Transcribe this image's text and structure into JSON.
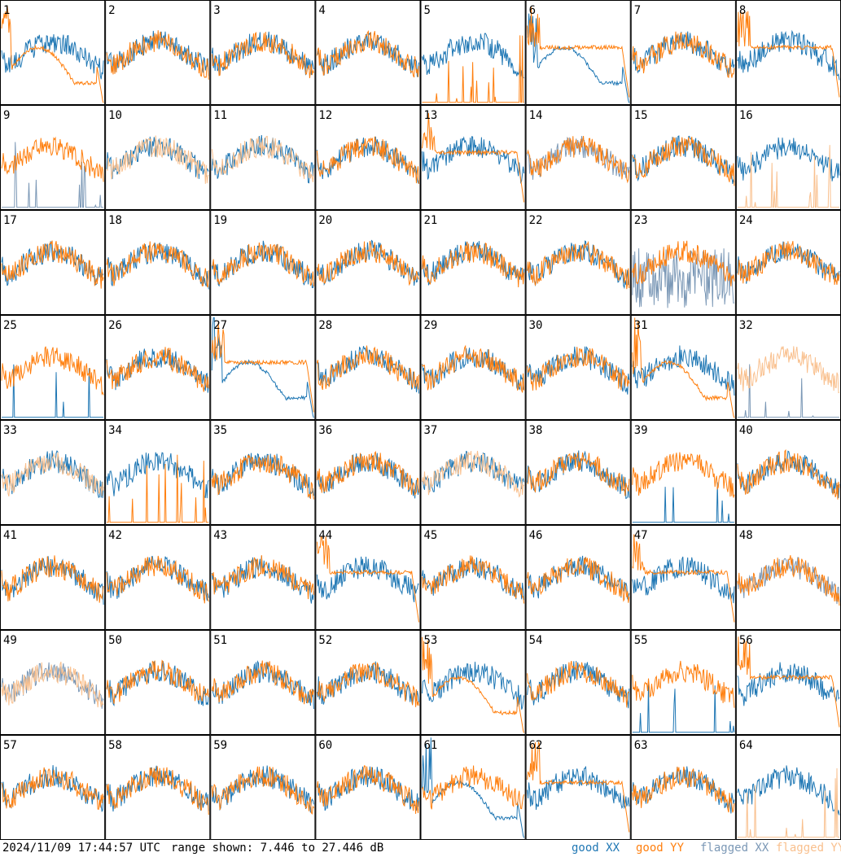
{
  "footer": {
    "timestamp": "2024/11/09 17:44:57 UTC",
    "range_text": "range shown: 7.446 to 27.446 dB",
    "legend": [
      {
        "label": "good XX",
        "color": "#1f77b4"
      },
      {
        "label": "good YY",
        "color": "#ff7f0e"
      },
      {
        "label": "flagged XX",
        "color": "#7b98b6"
      },
      {
        "label": "flagged YY",
        "color": "#f9c08e"
      }
    ]
  },
  "chart_data": {
    "type": "line",
    "title": "",
    "xlabel": "",
    "ylabel": "",
    "ylim": [
      7.446,
      27.446
    ],
    "units": "dB",
    "grid": {
      "rows": 8,
      "cols": 8
    },
    "tiles": [
      {
        "id": "1",
        "xx": "good",
        "yy": "good",
        "xx_shape": "normal",
        "yy_shape": "bump"
      },
      {
        "id": "2",
        "xx": "good",
        "yy": "good",
        "xx_shape": "normal",
        "yy_shape": "normal"
      },
      {
        "id": "3",
        "xx": "good",
        "yy": "good",
        "xx_shape": "normal",
        "yy_shape": "normal"
      },
      {
        "id": "4",
        "xx": "good",
        "yy": "good",
        "xx_shape": "normal",
        "yy_shape": "normal"
      },
      {
        "id": "5",
        "xx": "good",
        "yy": "good",
        "xx_shape": "normal",
        "yy_shape": "spikes"
      },
      {
        "id": "6",
        "xx": "good",
        "yy": "good",
        "xx_shape": "bump",
        "yy_shape": "flat"
      },
      {
        "id": "7",
        "xx": "good",
        "yy": "good",
        "xx_shape": "normal",
        "yy_shape": "normal"
      },
      {
        "id": "8",
        "xx": "good",
        "yy": "good",
        "xx_shape": "normal",
        "yy_shape": "flat"
      },
      {
        "id": "9",
        "xx": "flagged",
        "yy": "good",
        "xx_shape": "spikes",
        "yy_shape": "normal"
      },
      {
        "id": "10",
        "xx": "good",
        "yy": "flagged",
        "xx_shape": "normal",
        "yy_shape": "normal"
      },
      {
        "id": "11",
        "xx": "good",
        "yy": "flagged",
        "xx_shape": "normal",
        "yy_shape": "normal"
      },
      {
        "id": "12",
        "xx": "good",
        "yy": "good",
        "xx_shape": "normal",
        "yy_shape": "normal"
      },
      {
        "id": "13",
        "xx": "good",
        "yy": "good",
        "xx_shape": "normal",
        "yy_shape": "flat"
      },
      {
        "id": "14",
        "xx": "flagged",
        "yy": "good",
        "xx_shape": "normal",
        "yy_shape": "normal"
      },
      {
        "id": "15",
        "xx": "good",
        "yy": "good",
        "xx_shape": "normal",
        "yy_shape": "normal"
      },
      {
        "id": "16",
        "xx": "good",
        "yy": "flagged",
        "xx_shape": "normal",
        "yy_shape": "spikes"
      },
      {
        "id": "17",
        "xx": "good",
        "yy": "good",
        "xx_shape": "normal",
        "yy_shape": "normal"
      },
      {
        "id": "18",
        "xx": "good",
        "yy": "good",
        "xx_shape": "normal",
        "yy_shape": "normal"
      },
      {
        "id": "19",
        "xx": "good",
        "yy": "good",
        "xx_shape": "normal",
        "yy_shape": "normal"
      },
      {
        "id": "20",
        "xx": "good",
        "yy": "good",
        "xx_shape": "normal",
        "yy_shape": "normal"
      },
      {
        "id": "21",
        "xx": "good",
        "yy": "good",
        "xx_shape": "normal",
        "yy_shape": "normal"
      },
      {
        "id": "22",
        "xx": "good",
        "yy": "good",
        "xx_shape": "normal",
        "yy_shape": "normal"
      },
      {
        "id": "23",
        "xx": "flagged",
        "yy": "good",
        "xx_shape": "noisy",
        "yy_shape": "normal"
      },
      {
        "id": "24",
        "xx": "good",
        "yy": "good",
        "xx_shape": "normal",
        "yy_shape": "normal"
      },
      {
        "id": "25",
        "xx": "good",
        "yy": "good",
        "xx_shape": "spikes",
        "yy_shape": "normal"
      },
      {
        "id": "26",
        "xx": "good",
        "yy": "good",
        "xx_shape": "normal",
        "yy_shape": "normal"
      },
      {
        "id": "27",
        "xx": "good",
        "yy": "good",
        "xx_shape": "bump",
        "yy_shape": "flat"
      },
      {
        "id": "28",
        "xx": "good",
        "yy": "good",
        "xx_shape": "normal",
        "yy_shape": "normal"
      },
      {
        "id": "29",
        "xx": "good",
        "yy": "good",
        "xx_shape": "normal",
        "yy_shape": "normal"
      },
      {
        "id": "30",
        "xx": "good",
        "yy": "good",
        "xx_shape": "normal",
        "yy_shape": "normal"
      },
      {
        "id": "31",
        "xx": "good",
        "yy": "good",
        "xx_shape": "normal",
        "yy_shape": "bump"
      },
      {
        "id": "32",
        "xx": "flagged",
        "yy": "flagged",
        "xx_shape": "spikes",
        "yy_shape": "normal"
      },
      {
        "id": "33",
        "xx": "good",
        "yy": "flagged",
        "xx_shape": "normal",
        "yy_shape": "normal"
      },
      {
        "id": "34",
        "xx": "good",
        "yy": "good",
        "xx_shape": "normal",
        "yy_shape": "spikes"
      },
      {
        "id": "35",
        "xx": "good",
        "yy": "good",
        "xx_shape": "normal",
        "yy_shape": "normal"
      },
      {
        "id": "36",
        "xx": "good",
        "yy": "good",
        "xx_shape": "normal",
        "yy_shape": "normal"
      },
      {
        "id": "37",
        "xx": "good",
        "yy": "flagged",
        "xx_shape": "normal",
        "yy_shape": "normal"
      },
      {
        "id": "38",
        "xx": "good",
        "yy": "good",
        "xx_shape": "normal",
        "yy_shape": "normal"
      },
      {
        "id": "39",
        "xx": "good",
        "yy": "good",
        "xx_shape": "spikes",
        "yy_shape": "normal"
      },
      {
        "id": "40",
        "xx": "good",
        "yy": "good",
        "xx_shape": "normal",
        "yy_shape": "normal"
      },
      {
        "id": "41",
        "xx": "good",
        "yy": "good",
        "xx_shape": "normal",
        "yy_shape": "normal"
      },
      {
        "id": "42",
        "xx": "good",
        "yy": "good",
        "xx_shape": "normal",
        "yy_shape": "normal"
      },
      {
        "id": "43",
        "xx": "good",
        "yy": "good",
        "xx_shape": "normal",
        "yy_shape": "normal"
      },
      {
        "id": "44",
        "xx": "good",
        "yy": "good",
        "xx_shape": "normal",
        "yy_shape": "flat"
      },
      {
        "id": "45",
        "xx": "good",
        "yy": "good",
        "xx_shape": "normal",
        "yy_shape": "normal"
      },
      {
        "id": "46",
        "xx": "good",
        "yy": "good",
        "xx_shape": "normal",
        "yy_shape": "normal"
      },
      {
        "id": "47",
        "xx": "good",
        "yy": "good",
        "xx_shape": "normal",
        "yy_shape": "flat"
      },
      {
        "id": "48",
        "xx": "flagged",
        "yy": "good",
        "xx_shape": "normal",
        "yy_shape": "normal"
      },
      {
        "id": "49",
        "xx": "flagged",
        "yy": "flagged",
        "xx_shape": "normal",
        "yy_shape": "normal"
      },
      {
        "id": "50",
        "xx": "good",
        "yy": "good",
        "xx_shape": "normal",
        "yy_shape": "normal"
      },
      {
        "id": "51",
        "xx": "good",
        "yy": "good",
        "xx_shape": "normal",
        "yy_shape": "normal"
      },
      {
        "id": "52",
        "xx": "good",
        "yy": "good",
        "xx_shape": "normal",
        "yy_shape": "normal"
      },
      {
        "id": "53",
        "xx": "good",
        "yy": "good",
        "xx_shape": "normal",
        "yy_shape": "bump"
      },
      {
        "id": "54",
        "xx": "good",
        "yy": "good",
        "xx_shape": "normal",
        "yy_shape": "normal"
      },
      {
        "id": "55",
        "xx": "good",
        "yy": "good",
        "xx_shape": "spikes",
        "yy_shape": "normal"
      },
      {
        "id": "56",
        "xx": "good",
        "yy": "good",
        "xx_shape": "normal",
        "yy_shape": "flat"
      },
      {
        "id": "57",
        "xx": "good",
        "yy": "good",
        "xx_shape": "normal",
        "yy_shape": "normal"
      },
      {
        "id": "58",
        "xx": "good",
        "yy": "good",
        "xx_shape": "normal",
        "yy_shape": "normal"
      },
      {
        "id": "59",
        "xx": "good",
        "yy": "good",
        "xx_shape": "normal",
        "yy_shape": "normal"
      },
      {
        "id": "60",
        "xx": "good",
        "yy": "good",
        "xx_shape": "normal",
        "yy_shape": "normal"
      },
      {
        "id": "61",
        "xx": "good",
        "yy": "good",
        "xx_shape": "bump",
        "yy_shape": "normal"
      },
      {
        "id": "62",
        "xx": "good",
        "yy": "good",
        "xx_shape": "normal",
        "yy_shape": "flat"
      },
      {
        "id": "63",
        "xx": "good",
        "yy": "good",
        "xx_shape": "normal",
        "yy_shape": "normal"
      },
      {
        "id": "64",
        "xx": "good",
        "yy": "flagged",
        "xx_shape": "normal",
        "yy_shape": "spikes"
      }
    ]
  }
}
